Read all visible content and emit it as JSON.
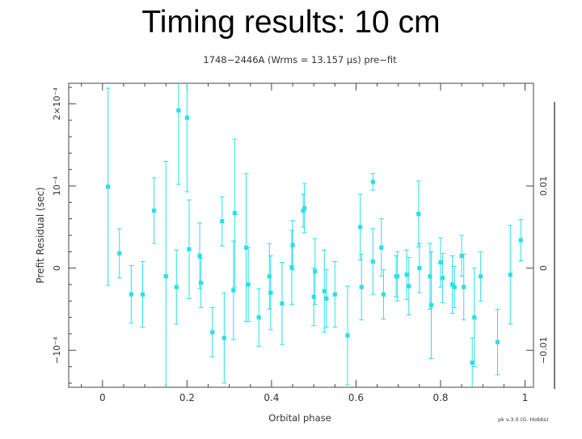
{
  "slide": {
    "title": "Timing results: 10 cm"
  },
  "plot": {
    "header": "1748−2446A (Wrms = 13.157 μs) pre−fit",
    "credit": "pk v.3.0 (G. Hobbs)"
  },
  "chart_data": {
    "type": "scatter",
    "title": "1748−2446A (Wrms = 13.157 μs) pre−fit",
    "xlabel": "Orbital phase",
    "ylabel": "Prefit Residual (sec)",
    "xlim": [
      -0.08,
      1.02
    ],
    "ylim": [
      -0.000145,
      0.000225
    ],
    "x_ticks": [
      "0",
      "0.2",
      "0.4",
      "0.6",
      "0.8",
      "1"
    ],
    "y_ticks": [
      "−10⁻⁴",
      "0",
      "10⁻⁴",
      "2×10⁻⁴"
    ],
    "right_axis_ticks": [
      "−0.01",
      "0",
      "0.01"
    ],
    "marker_color": "#2be0e6",
    "series": [
      {
        "points": [
          {
            "x": 0.013,
            "y": 9.9e-05,
            "err": 0.00012
          },
          {
            "x": 0.04,
            "y": 1.8e-05,
            "err": 3e-05
          },
          {
            "x": 0.068,
            "y": -3.2e-05,
            "err": 3.5e-05
          },
          {
            "x": 0.095,
            "y": -3.2e-05,
            "err": 4e-05
          },
          {
            "x": 0.122,
            "y": 7e-05,
            "err": 4e-05
          },
          {
            "x": 0.15,
            "y": -1e-05,
            "err": 0.00014
          },
          {
            "x": 0.175,
            "y": -2.3e-05,
            "err": 4.5e-05
          },
          {
            "x": 0.18,
            "y": 0.000192,
            "err": 9e-05
          },
          {
            "x": 0.2,
            "y": 0.000183,
            "err": 9e-05
          },
          {
            "x": 0.205,
            "y": 2.3e-05,
            "err": 6e-05
          },
          {
            "x": 0.23,
            "y": 1.5e-05,
            "err": 4e-05
          },
          {
            "x": 0.233,
            "y": -1.8e-05,
            "err": 3e-05
          },
          {
            "x": 0.26,
            "y": -7.8e-05,
            "err": 3e-05
          },
          {
            "x": 0.283,
            "y": 5.7e-05,
            "err": 3e-05
          },
          {
            "x": 0.288,
            "y": -8.5e-05,
            "err": 5.5e-05
          },
          {
            "x": 0.313,
            "y": 6.7e-05,
            "err": 9e-05
          },
          {
            "x": 0.31,
            "y": -2.7e-05,
            "err": 6e-05
          },
          {
            "x": 0.34,
            "y": 2.5e-05,
            "err": 9e-05
          },
          {
            "x": 0.345,
            "y": -2e-05,
            "err": 4.5e-05
          },
          {
            "x": 0.37,
            "y": -6e-05,
            "err": 3.5e-05
          },
          {
            "x": 0.395,
            "y": -1e-05,
            "err": 4e-05
          },
          {
            "x": 0.398,
            "y": -3e-05,
            "err": 4.5e-05
          },
          {
            "x": 0.425,
            "y": -4.3e-05,
            "err": 5e-05
          },
          {
            "x": 0.448,
            "y": 1e-06,
            "err": 4.5e-05
          },
          {
            "x": 0.45,
            "y": 2.8e-05,
            "err": 3e-05
          },
          {
            "x": 0.475,
            "y": 7e-05,
            "err": 2e-05
          },
          {
            "x": 0.478,
            "y": 7.3e-05,
            "err": 3e-05
          },
          {
            "x": 0.5,
            "y": -3.5e-05,
            "err": 3.5e-05
          },
          {
            "x": 0.503,
            "y": -4e-06,
            "err": 4e-05
          },
          {
            "x": 0.525,
            "y": -2.8e-05,
            "err": 5e-05
          },
          {
            "x": 0.53,
            "y": -3.7e-05,
            "err": 3.5e-05
          },
          {
            "x": 0.55,
            "y": -3.2e-05,
            "err": 4e-05
          },
          {
            "x": 0.58,
            "y": -8.2e-05,
            "err": 6e-05
          },
          {
            "x": 0.61,
            "y": 5e-05,
            "err": 4e-05
          },
          {
            "x": 0.613,
            "y": -2.3e-05,
            "err": 4e-05
          },
          {
            "x": 0.64,
            "y": 0.000105,
            "err": 1e-05
          },
          {
            "x": 0.64,
            "y": 8e-06,
            "err": 4e-05
          },
          {
            "x": 0.66,
            "y": 2.5e-05,
            "err": 3.5e-05
          },
          {
            "x": 0.665,
            "y": -3.2e-05,
            "err": 3e-05
          },
          {
            "x": 0.695,
            "y": -1e-05,
            "err": 2.5e-05
          },
          {
            "x": 0.698,
            "y": -1e-05,
            "err": 3e-05
          },
          {
            "x": 0.72,
            "y": -8e-06,
            "err": 3e-05
          },
          {
            "x": 0.725,
            "y": -2.2e-05,
            "err": 3.5e-05
          },
          {
            "x": 0.748,
            "y": 6.6e-05,
            "err": 4e-05
          },
          {
            "x": 0.75,
            "y": 0.0,
            "err": 3e-05
          },
          {
            "x": 0.775,
            "y": -1e-05,
            "err": 4e-05
          },
          {
            "x": 0.778,
            "y": -4.5e-05,
            "err": 6.5e-05
          },
          {
            "x": 0.8,
            "y": 7e-06,
            "err": 3e-05
          },
          {
            "x": 0.805,
            "y": -1.2e-05,
            "err": 3e-05
          },
          {
            "x": 0.828,
            "y": -2e-05,
            "err": 3.5e-05
          },
          {
            "x": 0.833,
            "y": -2.3e-05,
            "err": 2.5e-05
          },
          {
            "x": 0.85,
            "y": 1.5e-05,
            "err": 2.5e-05
          },
          {
            "x": 0.855,
            "y": -2.3e-05,
            "err": 4e-05
          },
          {
            "x": 0.875,
            "y": -0.000115,
            "err": 3e-05
          },
          {
            "x": 0.88,
            "y": -6e-05,
            "err": 6e-05
          },
          {
            "x": 0.895,
            "y": -1e-05,
            "err": 3e-05
          },
          {
            "x": 0.935,
            "y": -9e-05,
            "err": 4e-05
          },
          {
            "x": 0.965,
            "y": -8e-06,
            "err": 6e-05
          },
          {
            "x": 0.99,
            "y": 3.4e-05,
            "err": 2.5e-05
          }
        ]
      }
    ]
  }
}
